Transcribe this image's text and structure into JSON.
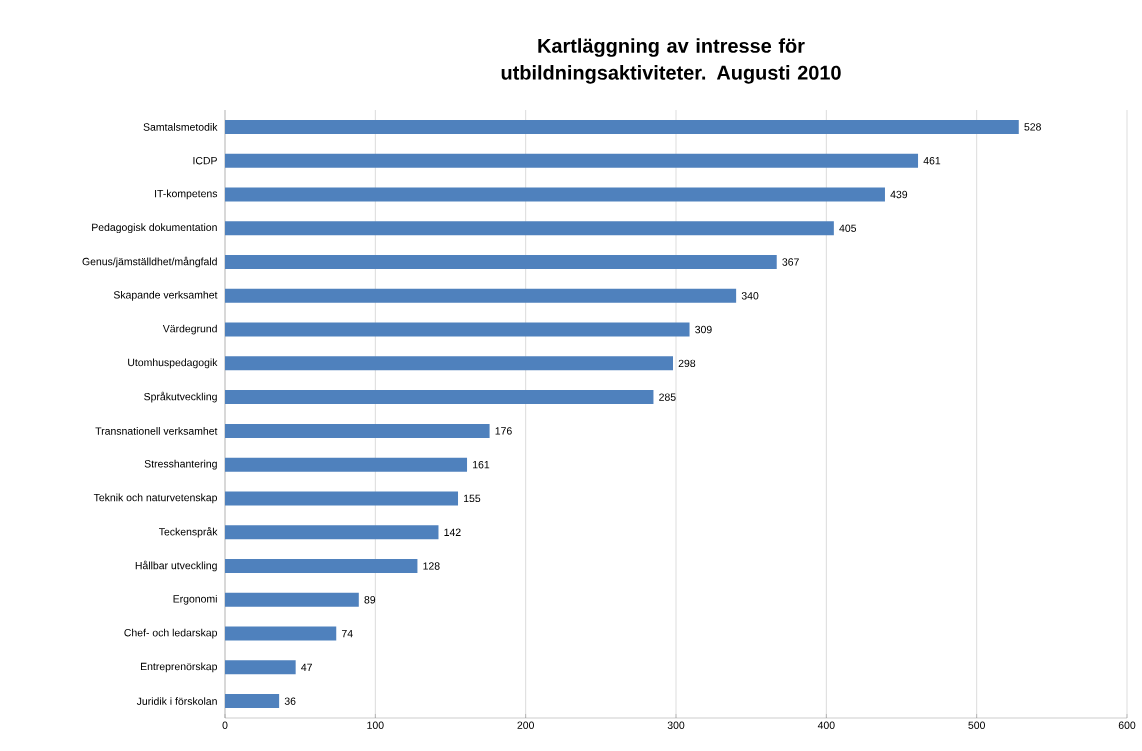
{
  "chart_data": {
    "type": "bar",
    "orientation": "horizontal",
    "title": "Kartläggning av intresse för utbildningsaktiviteter. Augusti 2010",
    "categories": [
      "Samtalsmetodik",
      "ICDP",
      "IT-kompetens",
      "Pedagogisk dokumentation",
      "Genus/jämställdhet/mångfald",
      "Skapande verksamhet",
      "Värdegrund",
      "Utomhuspedagogik",
      "Språkutveckling",
      "Transnationell verksamhet",
      "Stresshantering",
      "Teknik och naturvetenskap",
      "Teckenspråk",
      "Hållbar utveckling",
      "Ergonomi",
      "Chef- och ledarskap",
      "Entreprenörskap",
      "Juridik i förskolan"
    ],
    "values": [
      528,
      461,
      439,
      405,
      367,
      340,
      309,
      298,
      285,
      176,
      161,
      155,
      142,
      128,
      89,
      74,
      47,
      36
    ],
    "color": "#4f81bd",
    "xlim": [
      0,
      600
    ],
    "xticks": [
      0,
      100,
      200,
      300,
      400,
      500,
      600
    ],
    "grid": "x",
    "data_labels": true
  }
}
